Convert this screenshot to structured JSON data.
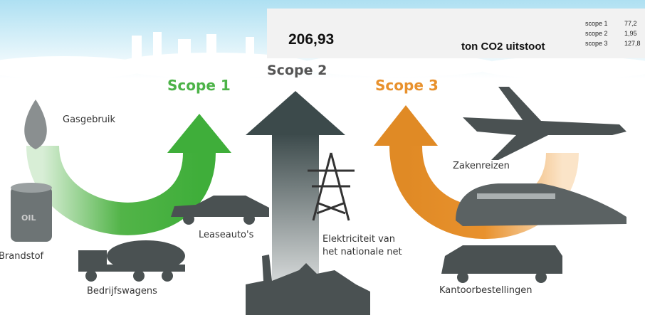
{
  "header": {
    "total": "206,93",
    "unit": "ton CO2 uitstoot"
  },
  "summary": [
    {
      "label": "scope 1",
      "value": "77,2"
    },
    {
      "label": "scope 2",
      "value": "1,95"
    },
    {
      "label": "scope 3",
      "value": "127,8"
    }
  ],
  "scopes": [
    "Scope 1",
    "Scope 2",
    "Scope 3"
  ],
  "labels": {
    "gas": "Gasgebruik",
    "fuel": "Brandstof",
    "barrel": "OIL",
    "lease": "Leaseauto's",
    "trucks": "Bedrijfswagens",
    "electricity": [
      "Elektriciteit van",
      "het nationale net"
    ],
    "travel": "Zakenreizen",
    "office": "Kantoorbestellingen"
  }
}
